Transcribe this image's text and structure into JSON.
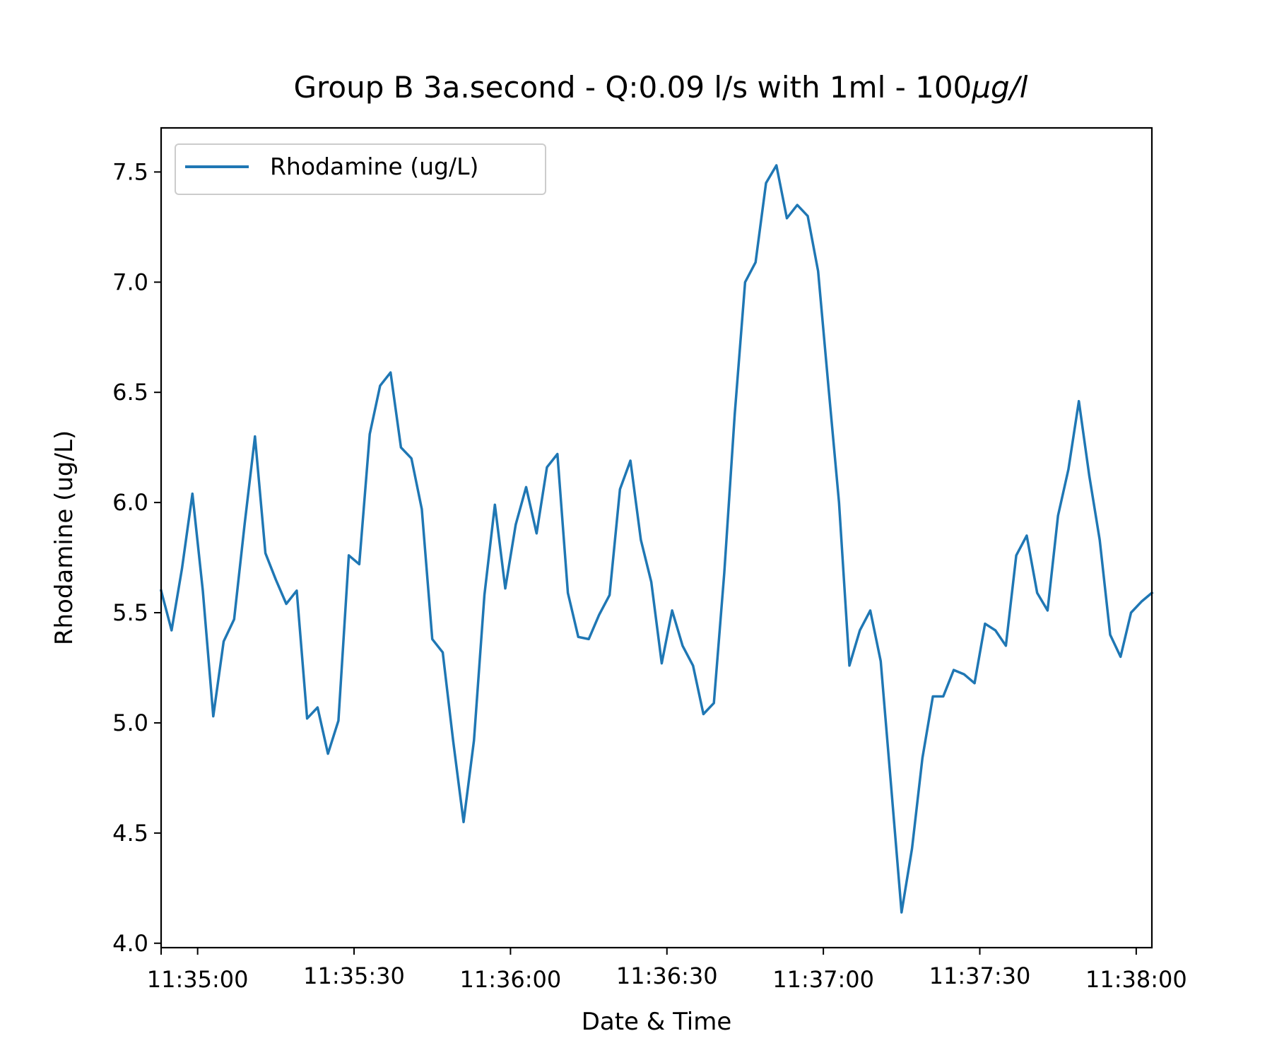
{
  "chart_data": {
    "type": "line",
    "title": "Group B 3a.second - Q:0.09 l/s with 1ml - 100",
    "title_unit": "μg/l",
    "xlabel": "Date & Time",
    "ylabel": "Rhodamine (ug/L)",
    "xlim": [
      "11:34:53",
      "11:38:03"
    ],
    "ylim": [
      3.98,
      7.7
    ],
    "xticks": [
      "11:35:00",
      "11:35:30",
      "11:36:00",
      "11:36:30",
      "11:37:00",
      "11:37:30",
      "11:38:00"
    ],
    "yticks": [
      "4.0",
      "4.5",
      "5.0",
      "5.5",
      "6.0",
      "6.5",
      "7.0",
      "7.5"
    ],
    "grid": false,
    "legend_position": "upper-left",
    "series": [
      {
        "name": "Rhodamine (ug/L)",
        "color": "#1f77b4",
        "x": [
          "11:34:53",
          "11:34:55",
          "11:34:57",
          "11:34:59",
          "11:35:01",
          "11:35:03",
          "11:35:05",
          "11:35:07",
          "11:35:09",
          "11:35:11",
          "11:35:13",
          "11:35:15",
          "11:35:17",
          "11:35:19",
          "11:35:21",
          "11:35:23",
          "11:35:25",
          "11:35:27",
          "11:35:29",
          "11:35:31",
          "11:35:33",
          "11:35:35",
          "11:35:37",
          "11:35:39",
          "11:35:41",
          "11:35:43",
          "11:35:45",
          "11:35:47",
          "11:35:49",
          "11:35:51",
          "11:35:53",
          "11:35:55",
          "11:35:57",
          "11:35:59",
          "11:36:01",
          "11:36:03",
          "11:36:05",
          "11:36:07",
          "11:36:09",
          "11:36:11",
          "11:36:13",
          "11:36:15",
          "11:36:17",
          "11:36:19",
          "11:36:21",
          "11:36:23",
          "11:36:25",
          "11:36:27",
          "11:36:29",
          "11:36:31",
          "11:36:33",
          "11:36:35",
          "11:36:37",
          "11:36:39",
          "11:36:41",
          "11:36:43",
          "11:36:45",
          "11:36:47",
          "11:36:49",
          "11:36:51",
          "11:36:53",
          "11:36:55",
          "11:36:57",
          "11:36:59",
          "11:37:01",
          "11:37:03",
          "11:37:05",
          "11:37:07",
          "11:37:09",
          "11:37:11",
          "11:37:13",
          "11:37:15",
          "11:37:17",
          "11:37:19",
          "11:37:21",
          "11:37:23",
          "11:37:25",
          "11:37:27",
          "11:37:29",
          "11:37:31",
          "11:37:33",
          "11:37:35",
          "11:37:37",
          "11:37:39",
          "11:37:41",
          "11:37:43",
          "11:37:45",
          "11:37:47",
          "11:37:49",
          "11:37:51",
          "11:37:53",
          "11:37:55",
          "11:37:57",
          "11:37:59",
          "11:38:01",
          "11:38:03"
        ],
        "y": [
          5.6,
          5.42,
          5.7,
          6.04,
          5.6,
          5.03,
          5.37,
          5.47,
          5.9,
          6.3,
          5.77,
          5.65,
          5.54,
          5.6,
          5.02,
          5.07,
          4.86,
          5.01,
          5.76,
          5.72,
          6.31,
          6.53,
          6.59,
          6.25,
          6.2,
          5.97,
          5.38,
          5.32,
          4.92,
          4.55,
          4.92,
          5.58,
          5.99,
          5.61,
          5.9,
          6.07,
          5.86,
          6.16,
          6.22,
          5.59,
          5.39,
          5.38,
          5.49,
          5.58,
          6.06,
          6.19,
          5.83,
          5.64,
          5.27,
          5.51,
          5.35,
          5.26,
          5.04,
          5.09,
          5.68,
          6.4,
          7.0,
          7.09,
          7.45,
          7.53,
          7.29,
          7.35,
          7.3,
          7.05,
          6.52,
          6.0,
          5.26,
          5.42,
          5.51,
          5.28,
          4.71,
          4.14,
          4.43,
          4.84,
          5.12,
          5.12,
          5.24,
          5.22,
          5.18,
          5.45,
          5.42,
          5.35,
          5.76,
          5.85,
          5.59,
          5.51,
          5.94,
          6.15,
          6.46,
          6.12,
          5.83,
          5.4,
          5.3,
          5.5,
          5.55,
          5.59
        ]
      }
    ]
  }
}
